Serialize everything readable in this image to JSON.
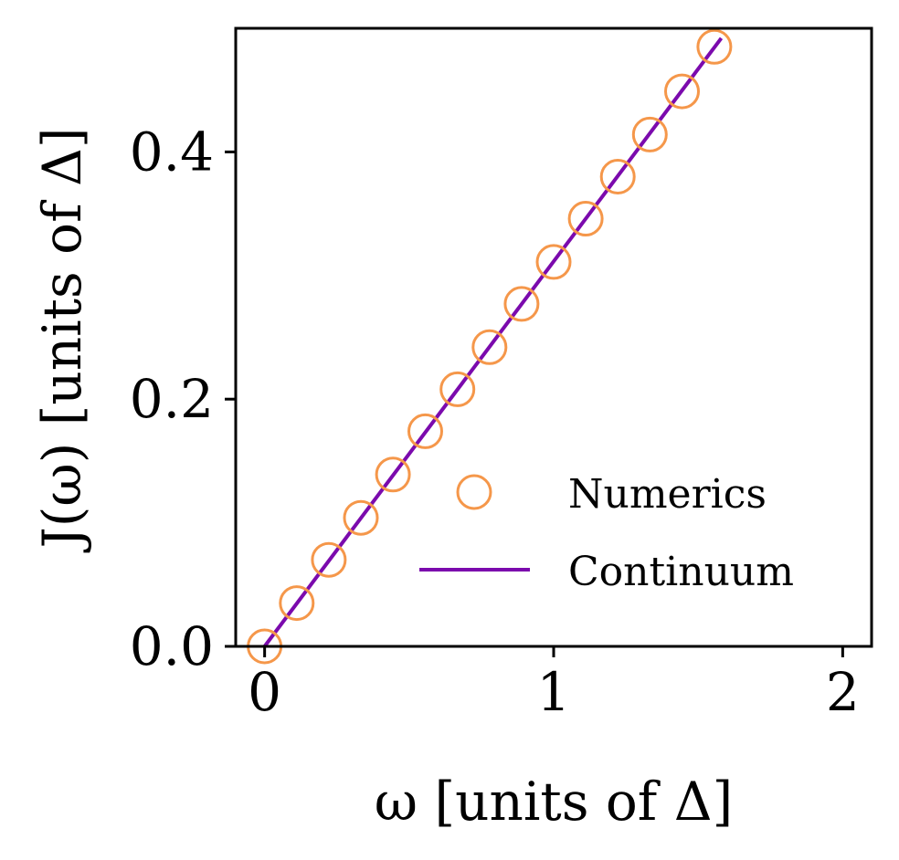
{
  "chart_data": {
    "type": "scatter",
    "xlabel": "ω [units of Δ]",
    "ylabel": "J(ω) [units of Δ]",
    "xlim": [
      -0.1,
      2.1
    ],
    "ylim": [
      0.0,
      0.5
    ],
    "xticks": [
      0,
      1,
      2
    ],
    "xtick_labels": [
      "0",
      "1",
      "2"
    ],
    "yticks": [
      0.0,
      0.2,
      0.4
    ],
    "ytick_labels": [
      "0.0",
      "0.2",
      "0.4"
    ],
    "grid": false,
    "legend_position": "lower-right",
    "series": [
      {
        "name": "Numerics",
        "kind": "scatter",
        "marker": "open-circle",
        "color": "#f5974a",
        "x": [
          0.0,
          0.111,
          0.222,
          0.333,
          0.444,
          0.556,
          0.667,
          0.778,
          0.889,
          1.0,
          1.111,
          1.222,
          1.333,
          1.444,
          1.556
        ],
        "y": [
          0.0,
          0.035,
          0.07,
          0.104,
          0.139,
          0.174,
          0.208,
          0.242,
          0.277,
          0.311,
          0.346,
          0.38,
          0.414,
          0.449,
          0.485
        ]
      },
      {
        "name": "Continuum",
        "kind": "line",
        "color": "#7b0aad",
        "x": [
          0.0,
          1.58
        ],
        "y": [
          0.0,
          0.492
        ]
      }
    ]
  }
}
